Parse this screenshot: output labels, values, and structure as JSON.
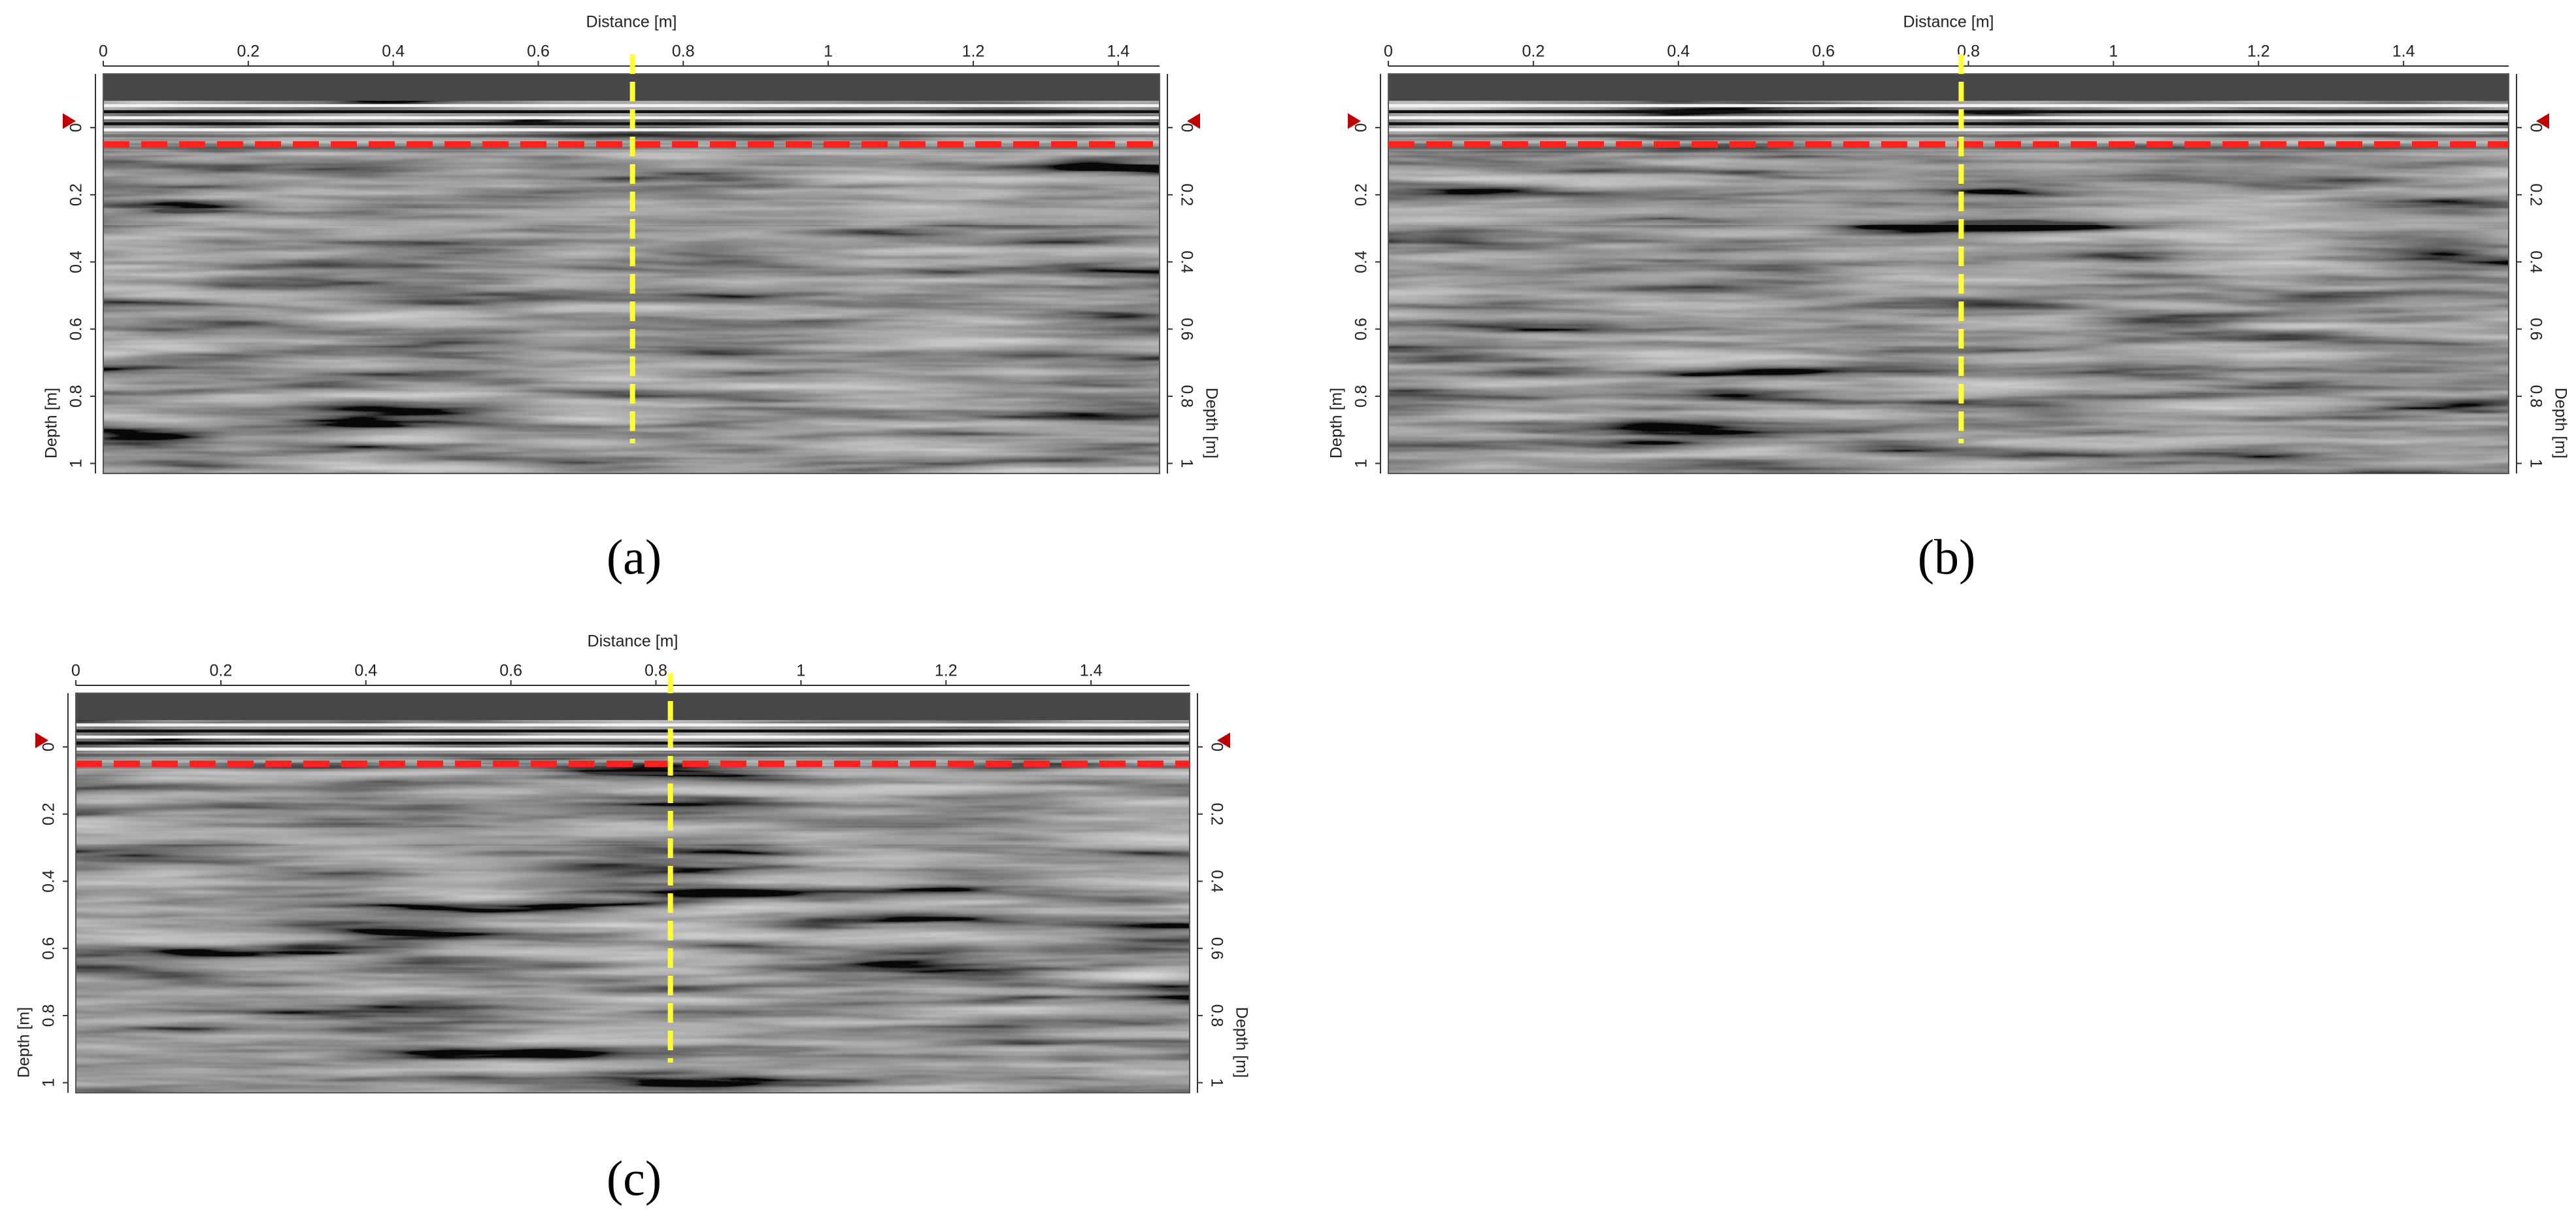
{
  "chart_data": [
    {
      "type": "radargram",
      "caption": "(a)",
      "xlabel": "Distance [m]",
      "ylabel": "Depth [m]",
      "xlim": [
        0,
        1.457
      ],
      "xticks": [
        0,
        0.2,
        0.4,
        0.6,
        0.8,
        1,
        1.2,
        1.4
      ],
      "ylim": [
        -0.16,
        1.03
      ],
      "yticks": [
        0,
        0.2,
        0.4,
        0.6,
        0.8,
        1
      ],
      "y_inverted": true,
      "vline_x": 0.73,
      "vline_color": "#ffff33",
      "hline_y": 0.05,
      "hline_color": "#ff2020"
    },
    {
      "type": "radargram",
      "caption": "(b)",
      "xlabel": "Distance [m]",
      "ylabel": "Depth [m]",
      "xlim": [
        0,
        1.545
      ],
      "xticks": [
        0,
        0.2,
        0.4,
        0.6,
        0.8,
        1,
        1.2,
        1.4
      ],
      "ylim": [
        -0.16,
        1.03
      ],
      "yticks": [
        0,
        0.2,
        0.4,
        0.6,
        0.8,
        1
      ],
      "y_inverted": true,
      "vline_x": 0.79,
      "vline_color": "#ffff33",
      "hline_y": 0.05,
      "hline_color": "#ff2020"
    },
    {
      "type": "radargram",
      "caption": "(c)",
      "xlabel": "Distance [m]",
      "ylabel": "Depth [m]",
      "xlim": [
        0,
        1.536
      ],
      "xticks": [
        0,
        0.2,
        0.4,
        0.6,
        0.8,
        1,
        1.2,
        1.4
      ],
      "ylim": [
        -0.16,
        1.03
      ],
      "yticks": [
        0,
        0.2,
        0.4,
        0.6,
        0.8,
        1
      ],
      "y_inverted": true,
      "vline_x": 0.82,
      "vline_color": "#ffff33",
      "hline_y": 0.05,
      "hline_color": "#ff2020"
    }
  ]
}
